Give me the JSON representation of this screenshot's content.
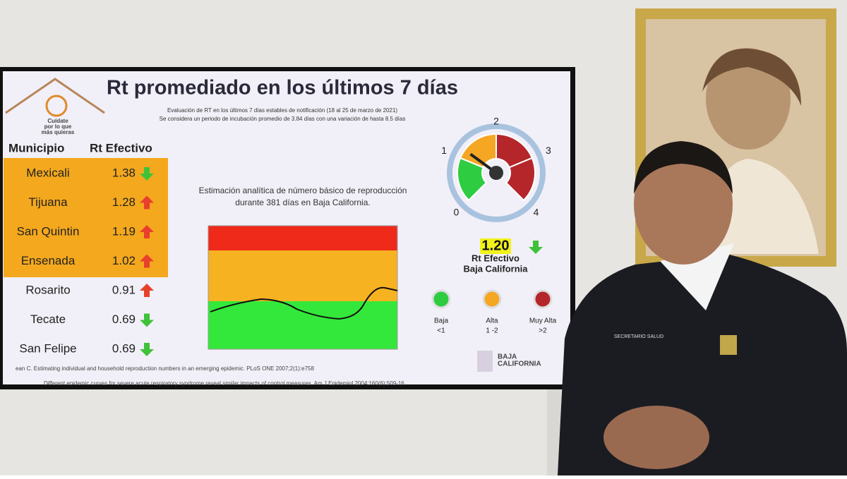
{
  "slide": {
    "title": "Rt promediado en los últimos 7 días",
    "subtitle_lines": [
      "Evaluación de RT en los últimos 7 días estables de notificación (18 al 25 de marzo de 2021)",
      "Se considera un periodo de incubación promedio de 3.84 días con una variación de hasta 8.5 días"
    ],
    "logo_text": [
      "Cuídate",
      "por lo que",
      "más quieras"
    ],
    "table": {
      "header": [
        "Municipio",
        "Rt Efectivo"
      ],
      "rows": [
        {
          "municipio": "Mexicali",
          "rt": "1.38",
          "trend": "down"
        },
        {
          "municipio": "Tijuana",
          "rt": "1.28",
          "trend": "up"
        },
        {
          "municipio": "San Quintin",
          "rt": "1.19",
          "trend": "up"
        },
        {
          "municipio": "Ensenada",
          "rt": "1.02",
          "trend": "up"
        },
        {
          "municipio": "Rosarito",
          "rt": "0.91",
          "trend": "up"
        },
        {
          "municipio": "Tecate",
          "rt": "0.69",
          "trend": "down"
        },
        {
          "municipio": "San Felipe",
          "rt": "0.69",
          "trend": "down"
        }
      ]
    },
    "chart_caption": [
      "Estimación analítica de número básico de reproducción",
      "durante 381 días en Baja California."
    ],
    "gauge": {
      "labels": [
        "0",
        "1",
        "2",
        "3",
        "4"
      ],
      "value": "1.20",
      "trend": "down",
      "value_label": [
        "Rt Efectivo",
        "Baja California"
      ]
    },
    "legend": [
      {
        "name": "Baja",
        "range": "<1",
        "color": "#2ecc40"
      },
      {
        "name": "Alta",
        "range": "1 -2",
        "color": "#f5a623"
      },
      {
        "name": "Muy Alta",
        "range": ">2",
        "color": "#b5262b"
      }
    ],
    "brand": [
      "BAJA",
      "CALIFORNIA"
    ],
    "footnotes": [
      "ean C. Estimating individual and household reproduction numbers in an emerging epidemic. PLoS ONE 2007;2(1):e758",
      "Different epidemic curves for severe acute respiratory syndrome reveal similar impacts of control measures. Am J Epidemiol 2004;160(6):509-16."
    ]
  },
  "badge": "SECRETARIO SALUD"
}
